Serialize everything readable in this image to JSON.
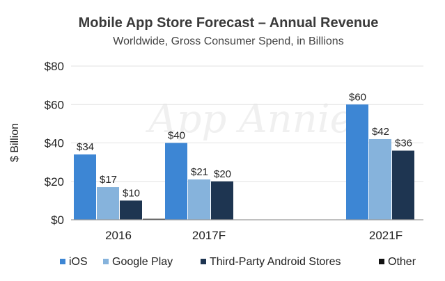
{
  "chart_data": {
    "type": "bar",
    "title": "Mobile App Store Forecast – Annual Revenue",
    "subtitle": "Worldwide, Gross Consumer Spend, in Billions",
    "ylabel": "$ Billion",
    "xlabel": "",
    "ylim": [
      0,
      80
    ],
    "yticks": [
      {
        "value": 0,
        "label": "$0"
      },
      {
        "value": 20,
        "label": "$20"
      },
      {
        "value": 40,
        "label": "$40"
      },
      {
        "value": 60,
        "label": "$60"
      },
      {
        "value": 80,
        "label": "$80"
      }
    ],
    "categories": [
      "2016",
      "2017F",
      "2021F"
    ],
    "series": [
      {
        "name": "iOS",
        "color": "#3d86d4",
        "values": [
          34,
          40,
          60
        ],
        "labels": [
          "$34",
          "$40",
          "$60"
        ]
      },
      {
        "name": "Google Play",
        "color": "#86b3dc",
        "values": [
          17,
          21,
          42
        ],
        "labels": [
          "$17",
          "$21",
          "$42"
        ]
      },
      {
        "name": "Third-Party Android Stores",
        "color": "#1e3551",
        "values": [
          10,
          20,
          36
        ],
        "labels": [
          "$10",
          "$20",
          "$36"
        ]
      },
      {
        "name": "Other",
        "color": "#111111",
        "values": [
          0.5,
          0,
          0
        ],
        "labels": [
          "",
          "",
          ""
        ]
      }
    ],
    "grid": true,
    "legend_position": "bottom",
    "watermark": "App Annie"
  }
}
